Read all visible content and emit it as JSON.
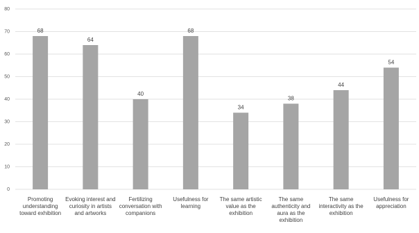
{
  "chart_data": {
    "type": "bar",
    "categories": [
      "Promoting understanding toward exhibition",
      "Evoking interest and curiosity in artists and artworks",
      "Fertilizing conversation with companions",
      "Usefulness for learning",
      "The same artistic value as the exhibition",
      "The same authenticity and aura as the exhibition",
      "The same interactivity as the exhibition",
      "Usefulness for appreciation"
    ],
    "values": [
      68,
      64,
      40,
      68,
      34,
      38,
      44,
      54
    ],
    "color": "#a5a5a5",
    "ylim": [
      0,
      80
    ],
    "yticks": [
      0,
      10,
      20,
      30,
      40,
      50,
      60,
      70,
      80
    ],
    "grid": true
  }
}
